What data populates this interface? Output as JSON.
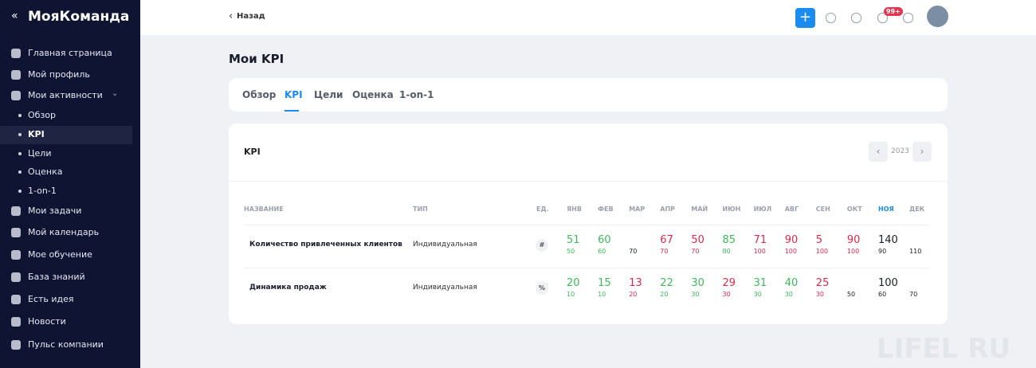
{
  "sidebar": {
    "brand": "МояКоманда",
    "items": [
      "Главная страница",
      "Мой профиль",
      "Мои активности"
    ],
    "subitems": [
      "Обзор",
      "KPI",
      "Цели",
      "Оценка",
      "1-on-1"
    ],
    "active_subitem": 1,
    "items_after": [
      "Мои задачи",
      "Мой календарь",
      "Мое обучение",
      "База знаний",
      "Есть идея",
      "Новости",
      "Пульс компании"
    ]
  },
  "topbar": {
    "back": "Назад",
    "badge": "99+"
  },
  "page": {
    "title": "Мои KPI",
    "tabs": [
      "Обзор",
      "KPI",
      "Цели",
      "Оценка",
      "1-on-1"
    ],
    "active_tab": 1
  },
  "card": {
    "title": "KPI",
    "year": "2023"
  },
  "table": {
    "headers": [
      "НАЗВАНИЕ",
      "ТИП",
      "ЕД."
    ],
    "months": [
      "ЯНВ",
      "ФЕВ",
      "МАР",
      "АПР",
      "МАЙ",
      "ИЮН",
      "ИЮЛ",
      "АВГ",
      "СЕН",
      "ОКТ",
      "НОЯ",
      "ДЕК"
    ],
    "current_month": 10,
    "rows": [
      {
        "name": "Количество привлеченных клиентов",
        "type": "Индивидуальная",
        "unit": "#",
        "actual": [
          51,
          60,
          null,
          67,
          50,
          85,
          71,
          90,
          5,
          90,
          140,
          null
        ],
        "target": [
          50,
          60,
          70,
          70,
          70,
          80,
          100,
          100,
          100,
          100,
          90,
          110
        ]
      },
      {
        "name": "Динамика продаж",
        "type": "Индивидуальная",
        "unit": "%",
        "actual": [
          20,
          15,
          13,
          22,
          30,
          29,
          31,
          40,
          25,
          null,
          100,
          null
        ],
        "target": [
          10,
          10,
          20,
          20,
          30,
          30,
          30,
          30,
          30,
          50,
          60,
          70
        ]
      }
    ]
  },
  "watermark": "LIFEL RU"
}
